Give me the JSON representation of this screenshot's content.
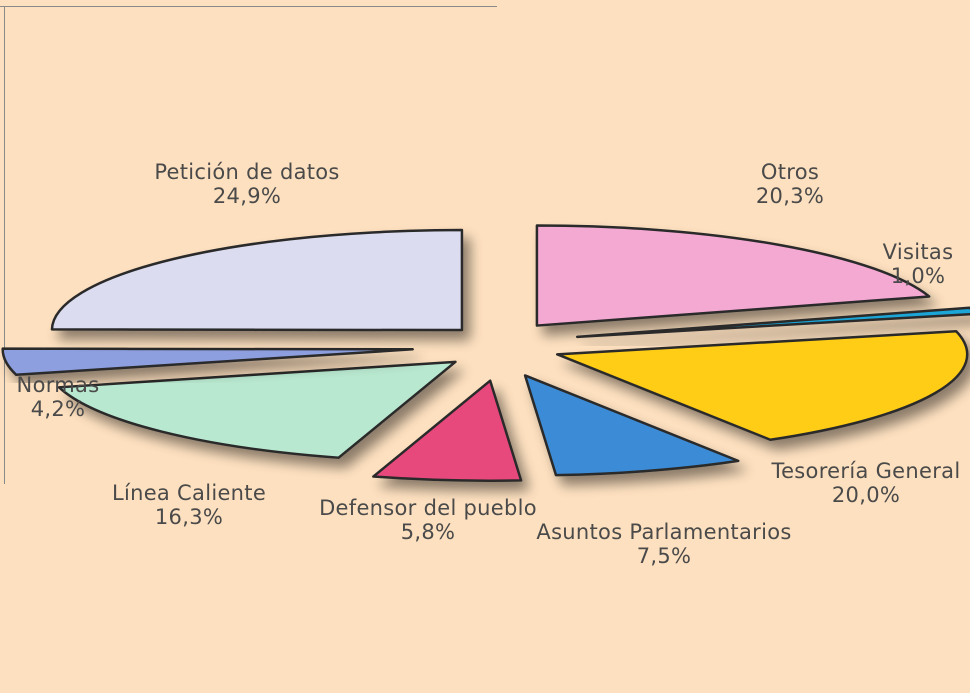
{
  "chart_data": {
    "type": "pie",
    "title": "",
    "slices": [
      {
        "label": "Otros",
        "value": 20.3,
        "value_text": "20,3%",
        "color": "#f4a9d3"
      },
      {
        "label": "Visitas",
        "value": 1.0,
        "value_text": "1,0%",
        "color": "#1aa6d8"
      },
      {
        "label": "Tesorería General",
        "value": 20.0,
        "value_text": "20,0%",
        "color": "#ffcc12"
      },
      {
        "label": "Asuntos Parlamentarios",
        "value": 7.5,
        "value_text": "7,5%",
        "color": "#3b8bd6"
      },
      {
        "label": "Defensor del pueblo",
        "value": 5.8,
        "value_text": "5,8%",
        "color": "#e84a7d"
      },
      {
        "label": "Línea Caliente",
        "value": 16.3,
        "value_text": "16,3%",
        "color": "#b8e8cf"
      },
      {
        "label": "Normas",
        "value": 4.2,
        "value_text": "4,2%",
        "color": "#8e9fe0"
      },
      {
        "label": "Petición de datos",
        "value": 24.9,
        "value_text": "24,9%",
        "color": "#dcdcf0"
      }
    ]
  }
}
